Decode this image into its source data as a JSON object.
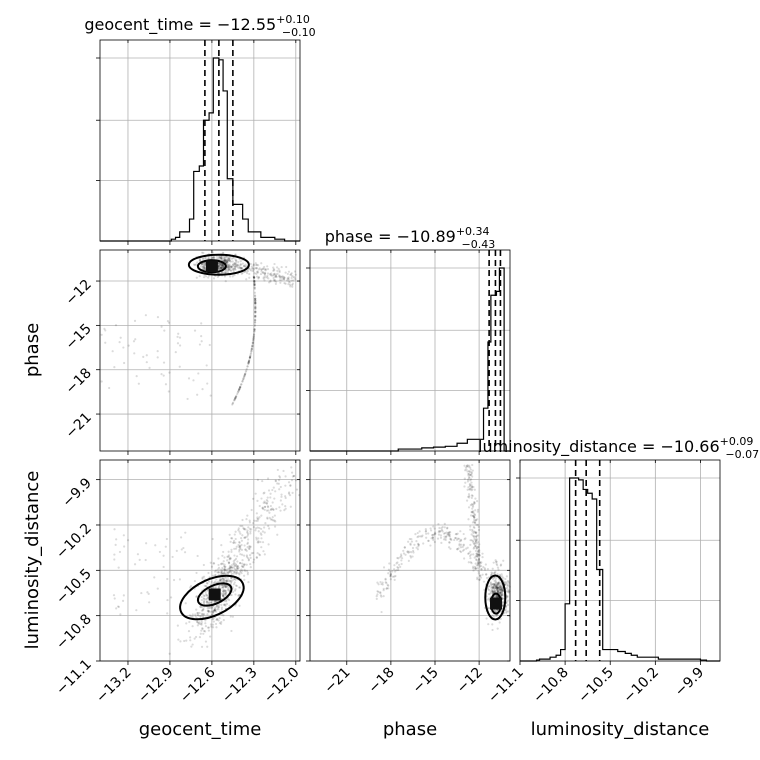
{
  "chart_data": {
    "type": "corner",
    "parameters": [
      "geocent_time",
      "phase",
      "luminosity_distance"
    ],
    "ranges": {
      "geocent_time": [
        -13.4,
        -11.97
      ],
      "phase": [
        -23.5,
        -9.9
      ],
      "luminosity_distance": [
        -11.1,
        -9.77
      ]
    },
    "ticks": {
      "geocent_time": {
        "values": [
          -13.2,
          -12.9,
          -12.6,
          -12.3,
          -12.0
        ],
        "labels": [
          "−13.2",
          "−12.9",
          "−12.6",
          "−12.3",
          "−12.0"
        ]
      },
      "phase": {
        "values": [
          -21,
          -18,
          -15,
          -12
        ],
        "labels": [
          "−21",
          "−18",
          "−15",
          "−12"
        ]
      },
      "luminosity_distance": {
        "values": [
          -11.1,
          -10.8,
          -10.5,
          -10.2,
          -9.9
        ],
        "labels": [
          "−11.1",
          "−10.8",
          "−10.5",
          "−10.2",
          "−9.9"
        ]
      }
    },
    "axis_labels": {
      "geocent_time": "geocent_time",
      "phase": "phase",
      "luminosity_distance": "luminosity_distance"
    },
    "titles": [
      {
        "param": "geocent_time",
        "text": "geocent_time = −12.55",
        "sup": "+0.10",
        "sub": "−0.10"
      },
      {
        "param": "phase",
        "text": "phase = −10.89",
        "sup": "+0.34",
        "sub": "−0.43"
      },
      {
        "param": "luminosity_distance",
        "text": "luminosity_distance = −10.66",
        "sup": "+0.09",
        "sub": "−0.07"
      }
    ],
    "quantiles": {
      "geocent_time": [
        -12.65,
        -12.55,
        -12.45
      ],
      "phase": [
        -11.32,
        -10.89,
        -10.55
      ],
      "luminosity_distance": [
        -10.73,
        -10.66,
        -10.57
      ]
    },
    "histograms": {
      "geocent_time": {
        "edges": [
          -12.89,
          -12.86,
          -12.83,
          -12.79,
          -12.76,
          -12.73,
          -12.69,
          -12.66,
          -12.62,
          -12.59,
          -12.55,
          -12.52,
          -12.49,
          -12.45,
          -12.42,
          -12.38,
          -12.34,
          -12.3,
          -12.25,
          -12.2,
          -12.15,
          -12.08
        ],
        "counts": [
          1,
          2,
          5,
          5,
          12,
          38,
          41,
          66,
          70,
          100,
          99,
          82,
          34,
          20,
          20,
          12,
          5,
          5,
          2,
          2,
          1
        ]
      },
      "phase": {
        "edges": [
          -17.5,
          -16.7,
          -15.9,
          -15.1,
          -14.3,
          -13.5,
          -12.8,
          -12.2,
          -11.7,
          -11.4,
          -11.2,
          -11.05,
          -10.93,
          -10.82,
          -10.72,
          -10.62,
          -10.52,
          -10.3
        ],
        "counts": [
          0.5,
          0.5,
          0.8,
          1,
          1.2,
          2,
          3,
          3,
          11,
          28,
          40,
          40,
          40,
          41,
          41,
          47,
          47
        ]
      },
      "luminosity_distance": {
        "edges": [
          -11.1,
          -10.99,
          -10.97,
          -10.95,
          -10.92,
          -10.9,
          -10.88,
          -10.86,
          -10.83,
          -10.8,
          -10.77,
          -10.74,
          -10.71,
          -10.68,
          -10.65,
          -10.62,
          -10.59,
          -10.55,
          -10.5,
          -10.45,
          -10.4,
          -10.36,
          -10.32,
          -10.28,
          -10.23,
          -10.18,
          -10.12,
          -10.05,
          -9.98,
          -9.9,
          -9.86
        ],
        "counts": [
          0,
          0.5,
          1,
          1,
          1,
          2,
          2,
          3,
          6,
          30,
          96,
          96,
          95,
          90,
          88,
          85,
          48,
          6,
          6,
          5,
          4,
          3,
          2,
          2,
          2,
          1,
          1,
          1,
          1,
          0.5
        ]
      }
    },
    "grid": true
  }
}
